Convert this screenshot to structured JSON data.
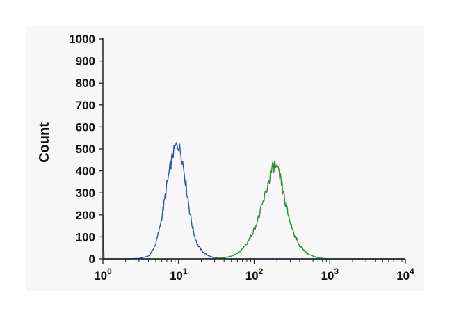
{
  "chart_data": {
    "type": "line",
    "title": "",
    "xlabel": "",
    "ylabel": "Count",
    "x_scale": "log",
    "xlim": [
      1,
      10000
    ],
    "ylim": [
      0,
      1000
    ],
    "grid": false,
    "legend": "none",
    "y_ticks": [
      {
        "value": 0,
        "label": "0"
      },
      {
        "value": 100,
        "label": "100"
      },
      {
        "value": 200,
        "label": "200"
      },
      {
        "value": 300,
        "label": "300"
      },
      {
        "value": 400,
        "label": "400"
      },
      {
        "value": 500,
        "label": "500"
      },
      {
        "value": 600,
        "label": "600"
      },
      {
        "value": 700,
        "label": "700"
      },
      {
        "value": 800,
        "label": "800"
      },
      {
        "value": 900,
        "label": "900"
      },
      {
        "value": 1000,
        "label": "1000"
      }
    ],
    "x_ticks": [
      {
        "value": 1,
        "base": "10",
        "exp": "0"
      },
      {
        "value": 10,
        "base": "10",
        "exp": "1"
      },
      {
        "value": 100,
        "base": "10",
        "exp": "2"
      },
      {
        "value": 1000,
        "base": "10",
        "exp": "3"
      },
      {
        "value": 10000,
        "base": "10",
        "exp": "4"
      }
    ],
    "series": [
      {
        "color": "#2f4fb5",
        "x": [
          1,
          2,
          3,
          4,
          4.5,
          5,
          5.5,
          6,
          6.5,
          7,
          7.5,
          8,
          8.5,
          9,
          9.5,
          10,
          10.5,
          11,
          11.5,
          12,
          13,
          14,
          15,
          16,
          17,
          18,
          20,
          22,
          25,
          28,
          32,
          36,
          40,
          50,
          70,
          100,
          200,
          1000,
          10000
        ],
        "y": [
          0,
          0,
          2,
          12,
          35,
          70,
          125,
          190,
          260,
          330,
          390,
          440,
          480,
          505,
          520,
          515,
          495,
          465,
          430,
          385,
          300,
          220,
          160,
          115,
          85,
          62,
          40,
          25,
          14,
          8,
          4,
          2,
          1,
          0,
          0,
          0,
          0,
          0,
          0
        ]
      },
      {
        "color": "#2e8b3a",
        "x": [
          1,
          1.02,
          1.05,
          1.1,
          2,
          5,
          10,
          20,
          30,
          40,
          50,
          60,
          70,
          80,
          90,
          100,
          110,
          120,
          130,
          140,
          150,
          160,
          170,
          180,
          190,
          200,
          220,
          240,
          260,
          300,
          350,
          400,
          500,
          600,
          700,
          800,
          1000,
          10000
        ],
        "y": [
          200,
          0,
          0,
          0,
          0,
          0,
          0,
          0,
          2,
          5,
          12,
          25,
          45,
          70,
          100,
          135,
          170,
          210,
          250,
          290,
          330,
          370,
          400,
          420,
          425,
          410,
          370,
          310,
          250,
          165,
          100,
          60,
          25,
          12,
          5,
          2,
          0,
          0
        ]
      }
    ]
  }
}
